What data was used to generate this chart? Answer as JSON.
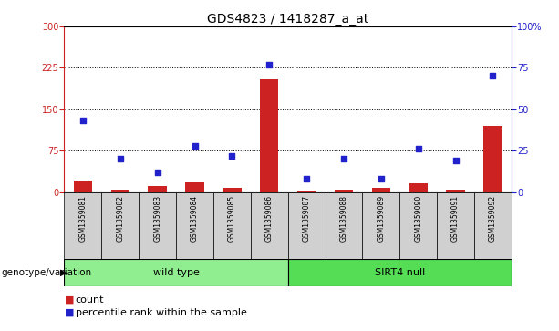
{
  "title": "GDS4823 / 1418287_a_at",
  "samples": [
    "GSM1359081",
    "GSM1359082",
    "GSM1359083",
    "GSM1359084",
    "GSM1359085",
    "GSM1359086",
    "GSM1359087",
    "GSM1359088",
    "GSM1359089",
    "GSM1359090",
    "GSM1359091",
    "GSM1359092"
  ],
  "count": [
    20,
    5,
    10,
    18,
    8,
    205,
    3,
    5,
    8,
    15,
    4,
    120
  ],
  "percentile": [
    43,
    20,
    12,
    28,
    22,
    77,
    8,
    20,
    8,
    26,
    19,
    70
  ],
  "wild_type_count": 6,
  "sirt4_null_count": 6,
  "left_ylim": [
    0,
    300
  ],
  "right_ylim": [
    0,
    100
  ],
  "left_yticks": [
    0,
    75,
    150,
    225,
    300
  ],
  "right_yticks": [
    0,
    25,
    50,
    75,
    100
  ],
  "right_yticklabels": [
    "0",
    "25",
    "50",
    "75",
    "100%"
  ],
  "hline_values": [
    75,
    150,
    225
  ],
  "bar_color": "#CC2222",
  "scatter_color": "#2222CC",
  "wild_type_color": "#90EE90",
  "sirt4_color": "#55DD55",
  "sample_row_color": "#d0d0d0",
  "bar_width": 0.5,
  "left_axis_color": "#CC2222",
  "right_axis_color": "#2222CC",
  "title_fontsize": 10,
  "legend_fontsize": 8,
  "tick_fontsize": 7,
  "group_label_fontsize": 8,
  "label_fontsize": 7.5
}
